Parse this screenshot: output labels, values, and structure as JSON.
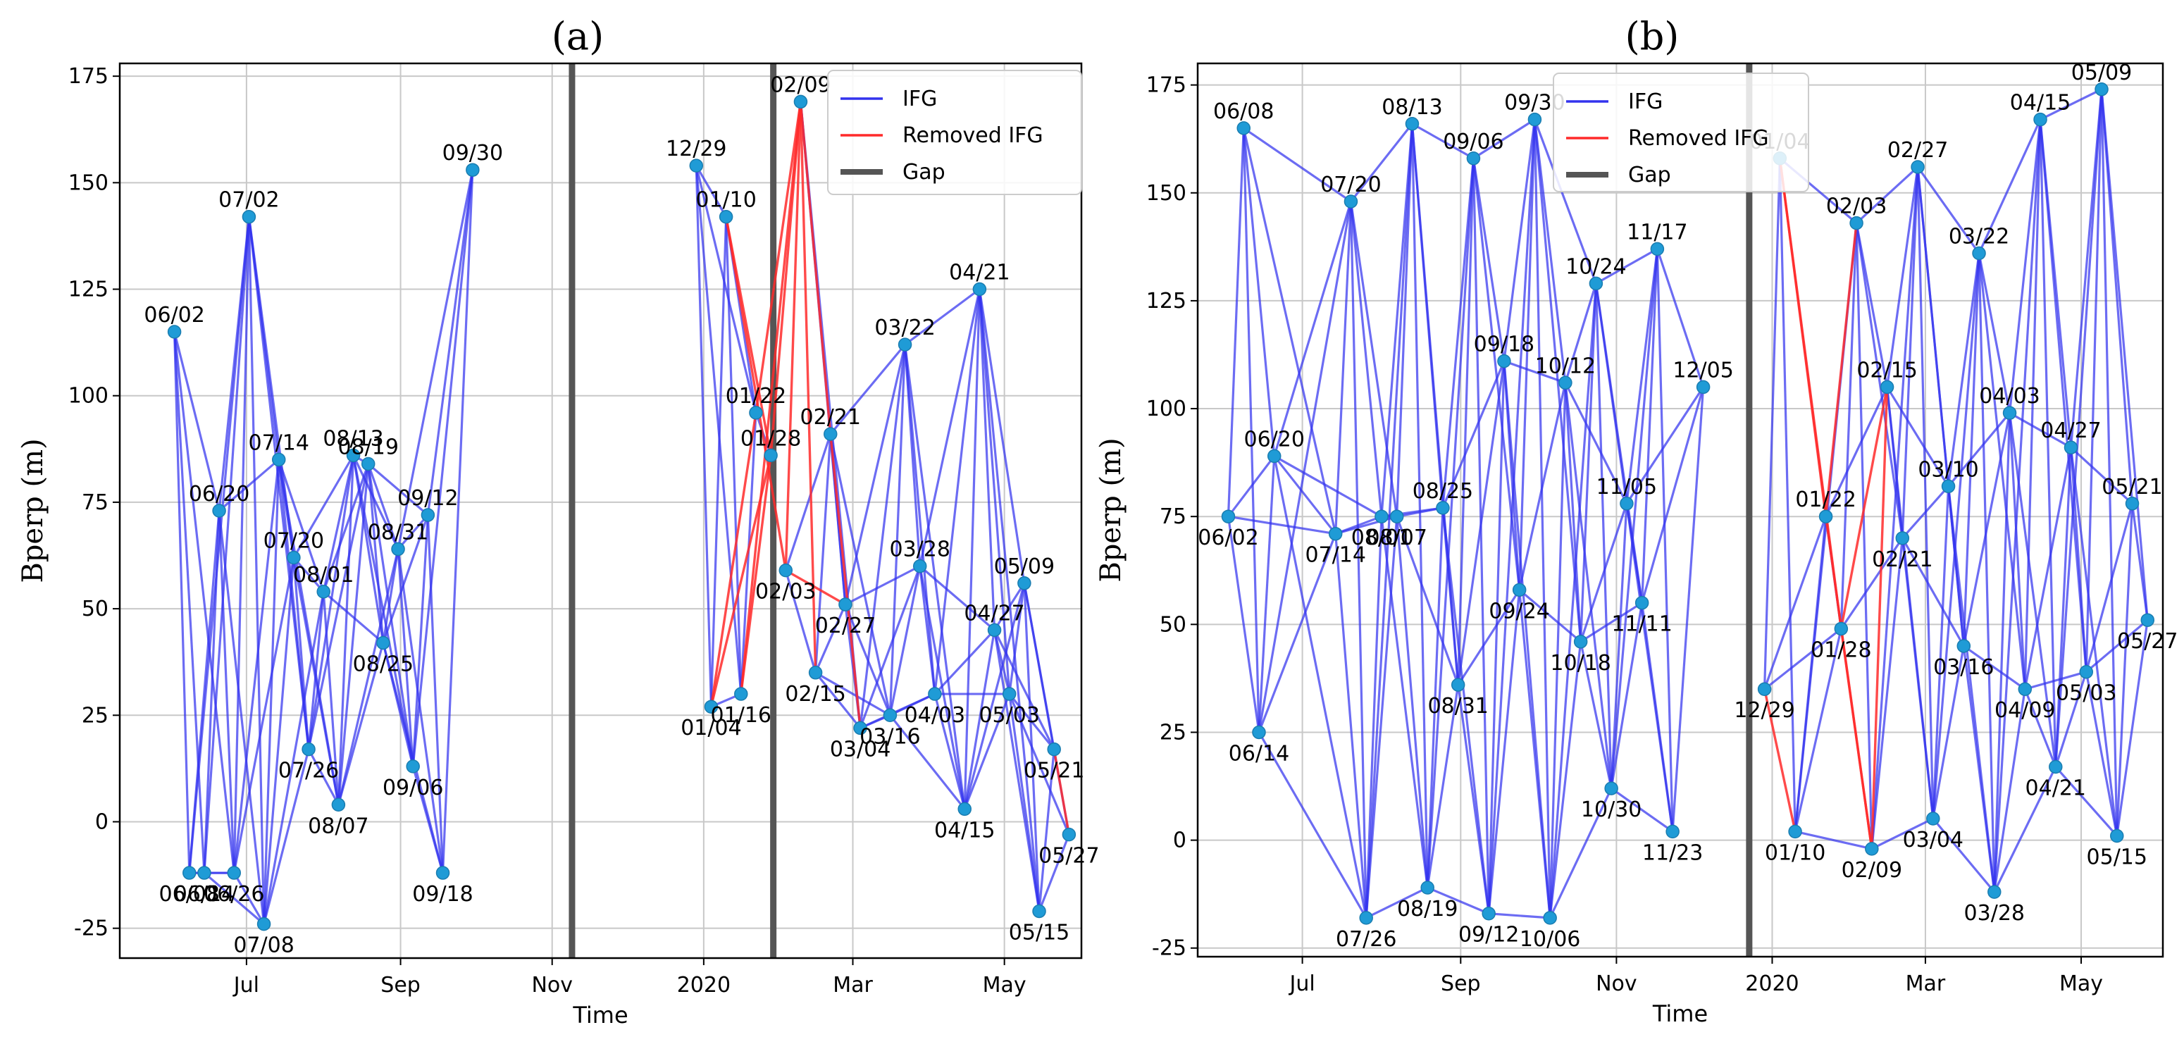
{
  "chart_data": [
    {
      "id": "a",
      "type": "scatter",
      "title": "(a)",
      "xlabel": "Time",
      "ylabel": "Bperp (m)",
      "ylim": [
        -32,
        178
      ],
      "xlim_days": [
        -22,
        365
      ],
      "y_ticks": [
        -25,
        0,
        25,
        50,
        75,
        100,
        125,
        150,
        175
      ],
      "x_ticks": [
        {
          "label": "Jul",
          "day": 29
        },
        {
          "label": "Sep",
          "day": 91
        },
        {
          "label": "Nov",
          "day": 152
        },
        {
          "label": "2020",
          "day": 213
        },
        {
          "label": "Mar",
          "day": 273
        },
        {
          "label": "May",
          "day": 334
        }
      ],
      "gaps_days": [
        160,
        241
      ],
      "legend": [
        "IFG",
        "Removed IFG",
        "Gap"
      ],
      "points": [
        {
          "label": "06/02",
          "day": 0,
          "y": 115
        },
        {
          "label": "06/08",
          "day": 6,
          "y": -12
        },
        {
          "label": "06/14",
          "day": 12,
          "y": -12
        },
        {
          "label": "06/20",
          "day": 18,
          "y": 73
        },
        {
          "label": "06/26",
          "day": 24,
          "y": -12
        },
        {
          "label": "07/02",
          "day": 30,
          "y": 142
        },
        {
          "label": "07/08",
          "day": 36,
          "y": -24
        },
        {
          "label": "07/14",
          "day": 42,
          "y": 85
        },
        {
          "label": "07/20",
          "day": 48,
          "y": 62
        },
        {
          "label": "07/26",
          "day": 54,
          "y": 17
        },
        {
          "label": "08/01",
          "day": 60,
          "y": 54
        },
        {
          "label": "08/07",
          "day": 66,
          "y": 4
        },
        {
          "label": "08/13",
          "day": 72,
          "y": 86
        },
        {
          "label": "08/19",
          "day": 78,
          "y": 84
        },
        {
          "label": "08/25",
          "day": 84,
          "y": 42
        },
        {
          "label": "08/31",
          "day": 90,
          "y": 64
        },
        {
          "label": "09/06",
          "day": 96,
          "y": 13
        },
        {
          "label": "09/12",
          "day": 102,
          "y": 72
        },
        {
          "label": "09/18",
          "day": 108,
          "y": -12
        },
        {
          "label": "09/30",
          "day": 120,
          "y": 153
        },
        {
          "label": "12/29",
          "day": 210,
          "y": 154
        },
        {
          "label": "01/04",
          "day": 216,
          "y": 27
        },
        {
          "label": "01/10",
          "day": 222,
          "y": 142
        },
        {
          "label": "01/16",
          "day": 228,
          "y": 30
        },
        {
          "label": "01/22",
          "day": 234,
          "y": 96
        },
        {
          "label": "01/28",
          "day": 240,
          "y": 86
        },
        {
          "label": "02/03",
          "day": 246,
          "y": 59
        },
        {
          "label": "02/09",
          "day": 252,
          "y": 169
        },
        {
          "label": "02/15",
          "day": 258,
          "y": 35
        },
        {
          "label": "02/21",
          "day": 264,
          "y": 91
        },
        {
          "label": "02/27",
          "day": 270,
          "y": 51
        },
        {
          "label": "03/04",
          "day": 276,
          "y": 22
        },
        {
          "label": "03/16",
          "day": 288,
          "y": 25
        },
        {
          "label": "03/22",
          "day": 294,
          "y": 112
        },
        {
          "label": "03/28",
          "day": 300,
          "y": 60
        },
        {
          "label": "04/03",
          "day": 306,
          "y": 30
        },
        {
          "label": "04/15",
          "day": 318,
          "y": 3
        },
        {
          "label": "04/21",
          "day": 324,
          "y": 125
        },
        {
          "label": "04/27",
          "day": 330,
          "y": 45
        },
        {
          "label": "05/03",
          "day": 336,
          "y": 30
        },
        {
          "label": "05/09",
          "day": 342,
          "y": 56
        },
        {
          "label": "05/15",
          "day": 348,
          "y": -21
        },
        {
          "label": "05/21",
          "day": 354,
          "y": 17
        },
        {
          "label": "05/27",
          "day": 360,
          "y": -3
        }
      ],
      "removed": [
        [
          "01/04",
          "01/22"
        ],
        [
          "01/04",
          "01/28"
        ],
        [
          "01/16",
          "01/28"
        ],
        [
          "01/10",
          "01/28"
        ],
        [
          "01/10",
          "02/03"
        ],
        [
          "01/16",
          "02/09"
        ],
        [
          "01/22",
          "02/09"
        ],
        [
          "01/28",
          "02/09"
        ],
        [
          "02/03",
          "02/09"
        ],
        [
          "02/09",
          "02/15"
        ],
        [
          "02/09",
          "02/21"
        ],
        [
          "02/03",
          "02/27"
        ],
        [
          "02/21",
          "03/04"
        ],
        [
          "05/21",
          "05/27"
        ]
      ]
    },
    {
      "id": "b",
      "type": "scatter",
      "title": "(b)",
      "xlabel": "Time",
      "ylabel": "Bperp (m)",
      "ylim": [
        -27,
        180
      ],
      "xlim_days": [
        -12,
        366
      ],
      "y_ticks": [
        -25,
        0,
        25,
        50,
        75,
        100,
        125,
        150,
        175
      ],
      "x_ticks": [
        {
          "label": "Jul",
          "day": 29
        },
        {
          "label": "Sep",
          "day": 91
        },
        {
          "label": "Nov",
          "day": 152
        },
        {
          "label": "2020",
          "day": 213
        },
        {
          "label": "Mar",
          "day": 273
        },
        {
          "label": "May",
          "day": 334
        }
      ],
      "gaps_days": [
        204
      ],
      "legend": [
        "IFG",
        "Removed IFG",
        "Gap"
      ],
      "points": [
        {
          "label": "06/02",
          "day": 0,
          "y": 75
        },
        {
          "label": "06/08",
          "day": 6,
          "y": 165
        },
        {
          "label": "06/14",
          "day": 12,
          "y": 25
        },
        {
          "label": "06/20",
          "day": 18,
          "y": 89
        },
        {
          "label": "07/14",
          "day": 42,
          "y": 71
        },
        {
          "label": "07/20",
          "day": 48,
          "y": 148
        },
        {
          "label": "07/26",
          "day": 54,
          "y": -18
        },
        {
          "label": "08/01",
          "day": 60,
          "y": 75
        },
        {
          "label": "08/07",
          "day": 66,
          "y": 75
        },
        {
          "label": "08/13",
          "day": 72,
          "y": 166
        },
        {
          "label": "08/19",
          "day": 78,
          "y": -11
        },
        {
          "label": "08/25",
          "day": 84,
          "y": 77
        },
        {
          "label": "08/31",
          "day": 90,
          "y": 36
        },
        {
          "label": "09/06",
          "day": 96,
          "y": 158
        },
        {
          "label": "09/12",
          "day": 102,
          "y": -17
        },
        {
          "label": "09/18",
          "day": 108,
          "y": 111
        },
        {
          "label": "09/24",
          "day": 114,
          "y": 58
        },
        {
          "label": "09/30",
          "day": 120,
          "y": 167
        },
        {
          "label": "10/06",
          "day": 126,
          "y": -18
        },
        {
          "label": "10/12",
          "day": 132,
          "y": 106
        },
        {
          "label": "10/18",
          "day": 138,
          "y": 46
        },
        {
          "label": "10/24",
          "day": 144,
          "y": 129
        },
        {
          "label": "10/30",
          "day": 150,
          "y": 12
        },
        {
          "label": "11/05",
          "day": 156,
          "y": 78
        },
        {
          "label": "11/11",
          "day": 162,
          "y": 55
        },
        {
          "label": "11/17",
          "day": 168,
          "y": 137
        },
        {
          "label": "11/23",
          "day": 174,
          "y": 2
        },
        {
          "label": "12/05",
          "day": 186,
          "y": 105
        },
        {
          "label": "12/29",
          "day": 210,
          "y": 35
        },
        {
          "label": "01/04",
          "day": 216,
          "y": 158
        },
        {
          "label": "01/10",
          "day": 222,
          "y": 2
        },
        {
          "label": "01/22",
          "day": 234,
          "y": 75
        },
        {
          "label": "01/28",
          "day": 240,
          "y": 49
        },
        {
          "label": "02/03",
          "day": 246,
          "y": 143
        },
        {
          "label": "02/09",
          "day": 252,
          "y": -2
        },
        {
          "label": "02/15",
          "day": 258,
          "y": 105
        },
        {
          "label": "02/21",
          "day": 264,
          "y": 70
        },
        {
          "label": "02/27",
          "day": 270,
          "y": 156
        },
        {
          "label": "03/04",
          "day": 276,
          "y": 5
        },
        {
          "label": "03/10",
          "day": 282,
          "y": 82
        },
        {
          "label": "03/16",
          "day": 288,
          "y": 45
        },
        {
          "label": "03/22",
          "day": 294,
          "y": 136
        },
        {
          "label": "03/28",
          "day": 300,
          "y": -12
        },
        {
          "label": "04/03",
          "day": 306,
          "y": 99
        },
        {
          "label": "04/09",
          "day": 312,
          "y": 35
        },
        {
          "label": "04/15",
          "day": 318,
          "y": 167
        },
        {
          "label": "04/21",
          "day": 324,
          "y": 17
        },
        {
          "label": "04/27",
          "day": 330,
          "y": 91
        },
        {
          "label": "05/03",
          "day": 336,
          "y": 39
        },
        {
          "label": "05/09",
          "day": 342,
          "y": 174
        },
        {
          "label": "05/15",
          "day": 348,
          "y": 1
        },
        {
          "label": "05/21",
          "day": 354,
          "y": 78
        },
        {
          "label": "05/27",
          "day": 360,
          "y": 51
        }
      ],
      "removed": [
        [
          "12/29",
          "01/10"
        ],
        [
          "01/04",
          "01/22"
        ],
        [
          "01/04",
          "01/28"
        ],
        [
          "01/22",
          "02/03"
        ],
        [
          "01/22",
          "02/09"
        ],
        [
          "01/28",
          "02/09"
        ],
        [
          "01/28",
          "02/15"
        ],
        [
          "02/09",
          "02/15"
        ]
      ]
    }
  ]
}
